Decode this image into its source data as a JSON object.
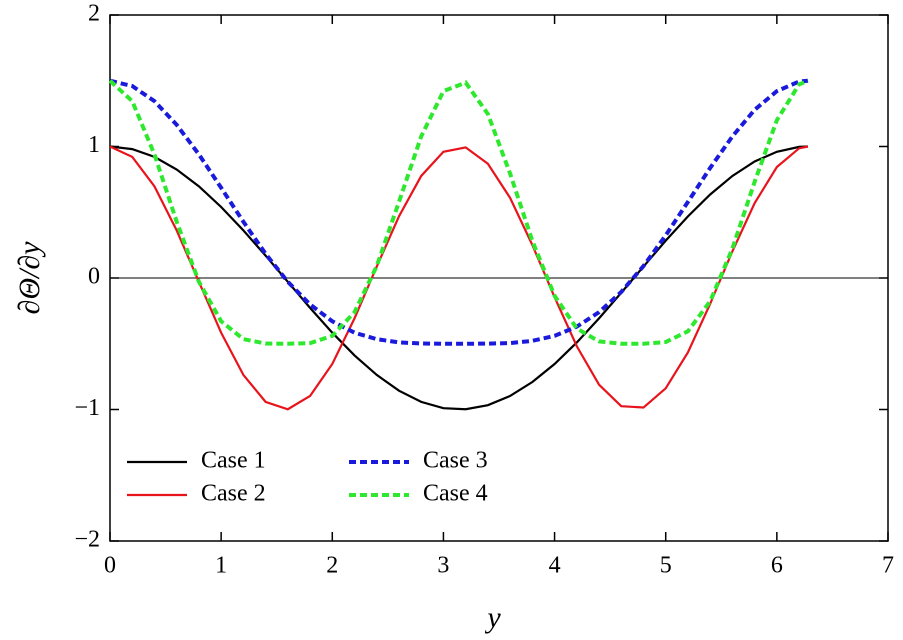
{
  "chart_data": {
    "type": "line",
    "ylabel": "∂Θ/∂y",
    "xlabel": "y",
    "x": [
      0,
      0.2,
      0.4,
      0.6,
      0.8,
      1.0,
      1.2,
      1.4,
      1.6,
      1.8,
      2.0,
      2.2,
      2.4,
      2.6,
      2.8,
      3.0,
      3.2,
      3.4,
      3.6,
      3.8,
      4.0,
      4.2,
      4.4,
      4.6,
      4.8,
      5.0,
      5.2,
      5.4,
      5.6,
      5.8,
      6.0,
      6.2,
      6.28
    ],
    "series": [
      {
        "name": "Case 1",
        "color": "#000000",
        "linestyle": "solid",
        "values": [
          1,
          0.98,
          0.921,
          0.825,
          0.697,
          0.54,
          0.362,
          0.17,
          -0.029,
          -0.227,
          -0.416,
          -0.589,
          -0.737,
          -0.857,
          -0.942,
          -0.99,
          -0.998,
          -0.967,
          -0.897,
          -0.791,
          -0.654,
          -0.49,
          -0.307,
          -0.112,
          0.087,
          0.284,
          0.469,
          0.635,
          0.776,
          0.886,
          0.96,
          0.997,
          1
        ]
      },
      {
        "name": "Case 2",
        "color": "#e8141c",
        "linestyle": "solid",
        "values": [
          1,
          0.921,
          0.697,
          0.362,
          -0.029,
          -0.416,
          -0.737,
          -0.942,
          -0.998,
          -0.897,
          -0.654,
          -0.307,
          0.087,
          0.469,
          0.776,
          0.96,
          0.993,
          0.869,
          0.609,
          0.251,
          -0.146,
          -0.519,
          -0.811,
          -0.975,
          -0.985,
          -0.839,
          -0.565,
          -0.196,
          0.203,
          0.569,
          0.844,
          0.986,
          1
        ]
      },
      {
        "name": "Case 3",
        "color": "#1a1adc",
        "linestyle": "dashed",
        "values": [
          1.5,
          1.46,
          1.345,
          1.165,
          0.94,
          0.686,
          0.428,
          0.184,
          -0.029,
          -0.201,
          -0.329,
          -0.416,
          -0.465,
          -0.49,
          -0.498,
          -0.5,
          -0.5,
          -0.499,
          -0.495,
          -0.478,
          -0.44,
          -0.37,
          -0.26,
          -0.106,
          0.091,
          0.324,
          0.579,
          0.837,
          1.077,
          1.279,
          1.421,
          1.494,
          1.5
        ]
      },
      {
        "name": "Case 4",
        "color": "#2ee82e",
        "linestyle": "dashed",
        "values": [
          1.5,
          1.345,
          0.94,
          0.428,
          -0.029,
          -0.329,
          -0.465,
          -0.498,
          -0.5,
          -0.495,
          -0.44,
          -0.26,
          0.091,
          0.579,
          1.077,
          1.421,
          1.486,
          1.247,
          0.794,
          0.283,
          -0.135,
          -0.384,
          -0.482,
          -0.5,
          -0.5,
          -0.487,
          -0.405,
          -0.177,
          0.224,
          0.731,
          1.2,
          1.472,
          1.5
        ]
      }
    ],
    "xlim": [
      0,
      7
    ],
    "xticks": [
      0,
      1,
      2,
      3,
      4,
      5,
      6,
      7
    ],
    "ylim": [
      -2,
      2
    ],
    "yticks": [
      {
        "value": -2,
        "label": "−2"
      },
      {
        "value": -1,
        "label": "−1"
      },
      0,
      1,
      2
    ],
    "zero_line": true,
    "legend": "lower left"
  }
}
